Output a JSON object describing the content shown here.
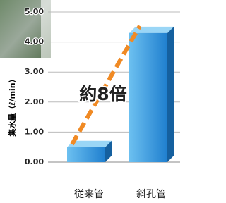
{
  "chart_data": {
    "type": "bar",
    "y_label": "集水量（ℓ/min）",
    "annotation": "約8倍",
    "categories": [
      "従来管",
      "斜孔管"
    ],
    "values": [
      0.5,
      4.3
    ],
    "color": "#2a8ad6",
    "ylim": [
      0,
      5
    ],
    "yticks": [
      {
        "value": 0,
        "label": "0.00"
      },
      {
        "value": 1,
        "label": "1.00"
      },
      {
        "value": 2,
        "label": "2.00"
      },
      {
        "value": 3,
        "label": "3.00"
      },
      {
        "value": 4,
        "label": "4.00"
      },
      {
        "value": 5,
        "label": "5.00"
      }
    ],
    "grid": true
  }
}
